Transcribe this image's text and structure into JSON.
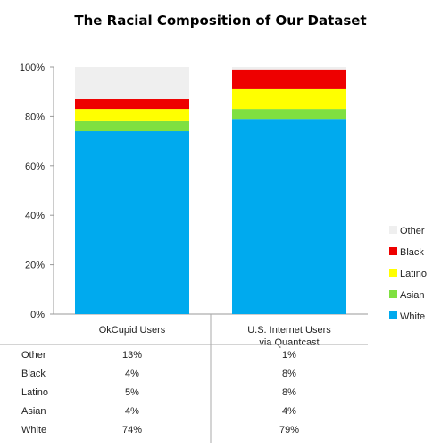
{
  "chart_data": {
    "type": "bar",
    "stacked": true,
    "title": "The Racial Composition of Our Dataset",
    "xlabel": "",
    "ylabel": "",
    "ylim": [
      0,
      100
    ],
    "y_ticks": [
      "0%",
      "20%",
      "40%",
      "60%",
      "80%",
      "100%"
    ],
    "categories": [
      [
        "OkCupid Users"
      ],
      [
        "U.S. Internet Users",
        "via Quantcast"
      ]
    ],
    "series": [
      {
        "name": "White",
        "color": "#00aaee",
        "values": [
          74,
          79
        ]
      },
      {
        "name": "Asian",
        "color": "#7fe040",
        "values": [
          4,
          4
        ]
      },
      {
        "name": "Latino",
        "color": "#ffff00",
        "values": [
          5,
          8
        ]
      },
      {
        "name": "Black",
        "color": "#ee0000",
        "values": [
          4,
          8
        ]
      },
      {
        "name": "Other",
        "color": "#efefef",
        "values": [
          13,
          1
        ]
      }
    ],
    "legend_position": "right",
    "legend_order": [
      "Other",
      "Black",
      "Latino",
      "Asian",
      "White"
    ],
    "table_rows": [
      {
        "label": "Other",
        "cells": [
          "13%",
          "1%"
        ]
      },
      {
        "label": "Black",
        "cells": [
          "4%",
          "8%"
        ]
      },
      {
        "label": "Latino",
        "cells": [
          "5%",
          "8%"
        ]
      },
      {
        "label": "Asian",
        "cells": [
          "4%",
          "4%"
        ]
      },
      {
        "label": "White",
        "cells": [
          "74%",
          "79%"
        ]
      }
    ]
  }
}
